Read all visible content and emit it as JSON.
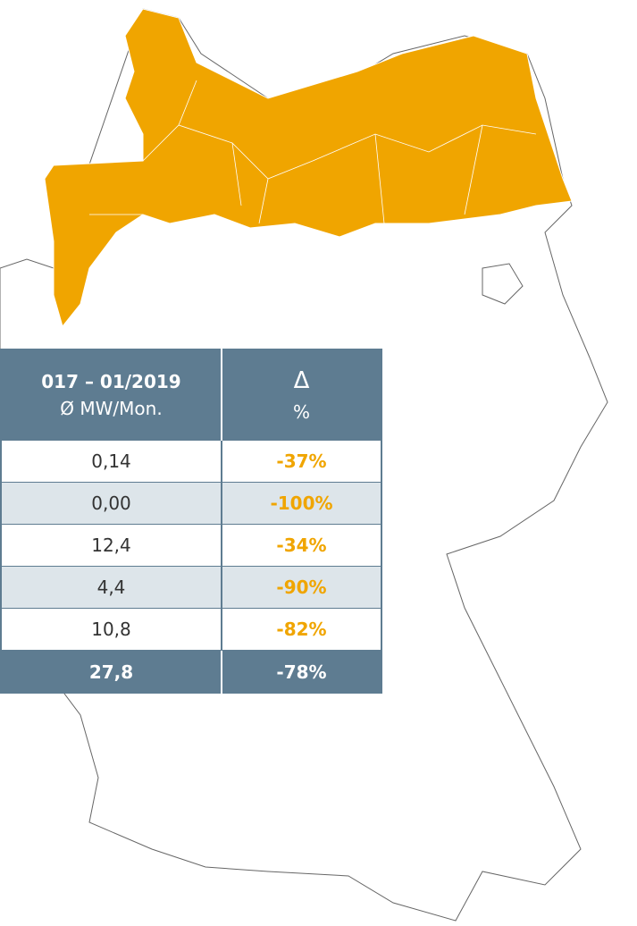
{
  "table": {
    "header": [
      [
        "017 – 01/2019",
        "Ø MW/Mon."
      ],
      [
        "Δ",
        "%"
      ]
    ],
    "rows": [
      [
        "0,14",
        "-37%"
      ],
      [
        "0,00",
        "-100%"
      ],
      [
        "12,4",
        "-34%"
      ],
      [
        "4,4",
        "-90%"
      ],
      [
        "10,8",
        "-82%"
      ],
      [
        "27,8",
        "-78%"
      ]
    ]
  }
}
